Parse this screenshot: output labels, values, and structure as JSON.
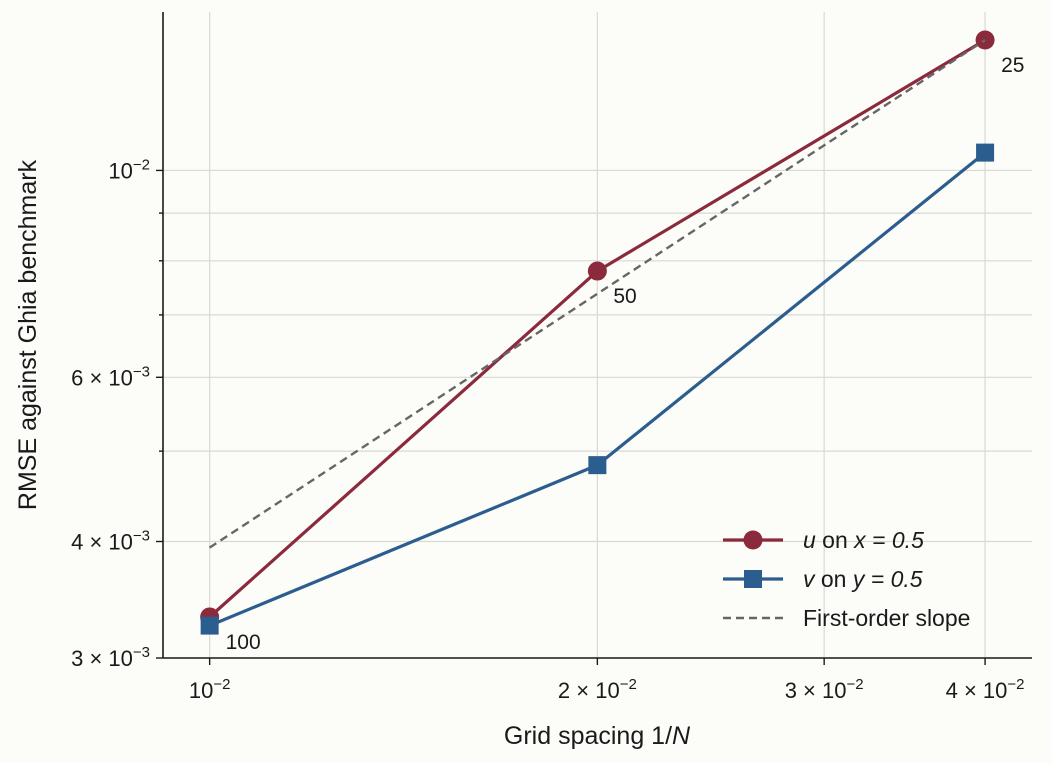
{
  "chart_data": {
    "type": "line",
    "xlabel": "Grid spacing  1/N",
    "ylabel": "RMSE against Ghia benchmark",
    "xscale": "log",
    "yscale": "log",
    "xlim": [
      0.0092,
      0.0435
    ],
    "ylim": [
      0.003,
      0.0138
    ],
    "grid": true,
    "legend_position": "bottom-right",
    "x_ticks": [
      {
        "value": 0.01,
        "mantissa": "",
        "exp": "−2"
      },
      {
        "value": 0.02,
        "mantissa": "2",
        "exp": "−2"
      },
      {
        "value": 0.03,
        "mantissa": "3",
        "exp": "−2"
      },
      {
        "value": 0.04,
        "mantissa": "4",
        "exp": "−2"
      }
    ],
    "y_ticks": [
      {
        "value": 0.003,
        "mantissa": "3",
        "exp": "−3"
      },
      {
        "value": 0.004,
        "mantissa": "4",
        "exp": "−3"
      },
      {
        "value": 0.006,
        "mantissa": "6",
        "exp": "−3"
      },
      {
        "value": 0.01,
        "mantissa": "",
        "exp": "−2"
      }
    ],
    "y_minor_ticks": [
      0.005,
      0.007,
      0.008,
      0.009
    ],
    "x_minor_ticks": [
      0.03
    ],
    "series": [
      {
        "name": "u on x = 0.5",
        "legend_var": "u",
        "legend_mid": " on ",
        "legend_cond": "x = 0.5",
        "color": "#8b2a3c",
        "marker": "circle",
        "dashed": false,
        "x": [
          0.01,
          0.02,
          0.04
        ],
        "y": [
          0.00332,
          0.0078,
          0.0138
        ]
      },
      {
        "name": "v on y = 0.5",
        "legend_var": "v",
        "legend_mid": " on ",
        "legend_cond": "y = 0.5",
        "color": "#2c5d8f",
        "marker": "square",
        "dashed": false,
        "x": [
          0.01,
          0.02,
          0.04
        ],
        "y": [
          0.00325,
          0.00483,
          0.01045
        ]
      },
      {
        "name": "First-order slope",
        "legend_var": "",
        "legend_mid": "First-order slope",
        "legend_cond": "",
        "color": "#666666",
        "marker": "none",
        "dashed": true,
        "x": [
          0.01,
          0.04
        ],
        "y": [
          0.00394,
          0.0138
        ]
      }
    ],
    "annotations": [
      {
        "text": "100",
        "x": 0.01,
        "y": 0.00332
      },
      {
        "text": "50",
        "x": 0.02,
        "y": 0.0078
      },
      {
        "text": "25",
        "x": 0.04,
        "y": 0.0138
      }
    ]
  }
}
